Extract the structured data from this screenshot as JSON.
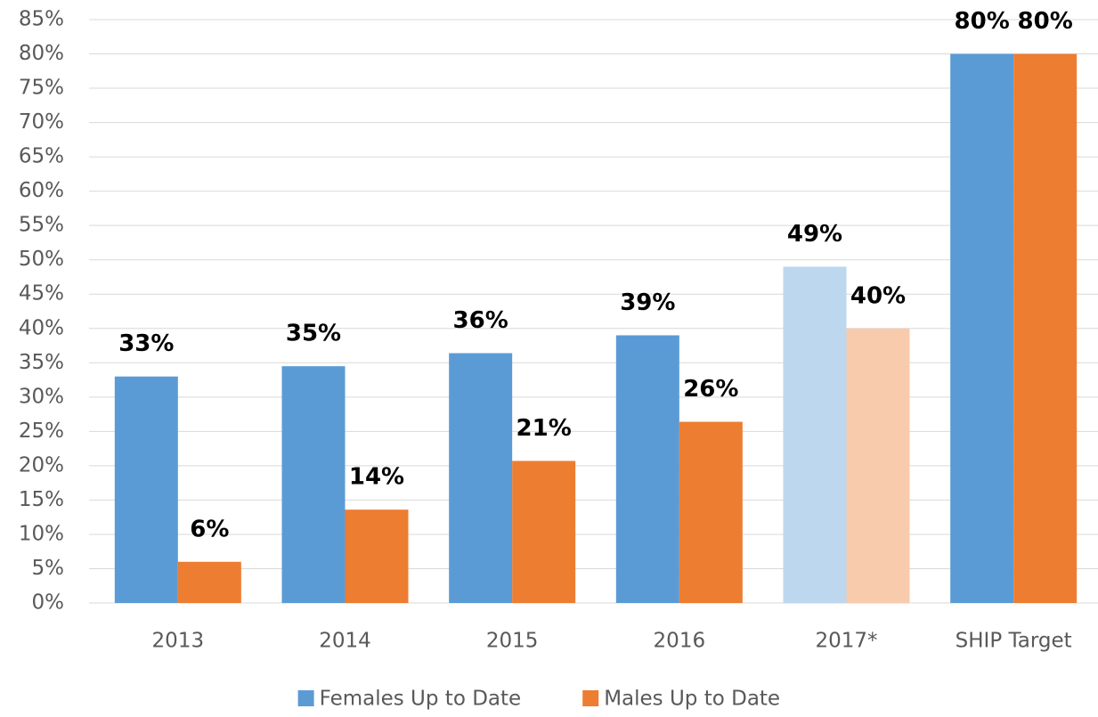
{
  "chart_data": {
    "type": "bar",
    "categories": [
      "2013",
      "2014",
      "2015",
      "2016",
      "2017*",
      "SHIP Target"
    ],
    "series": [
      {
        "name": "Females Up to Date",
        "color": "#5b9bd5",
        "colors": [
          "#5b9bd5",
          "#5b9bd5",
          "#5b9bd5",
          "#5b9bd5",
          "#bdd7ee",
          "#5b9bd5"
        ],
        "values": [
          33,
          34.5,
          36.4,
          39,
          49,
          80
        ],
        "value_labels": [
          "33%",
          "35%",
          "36%",
          "39%",
          "49%",
          "80%"
        ]
      },
      {
        "name": "Males Up to Date",
        "color": "#ed7d31",
        "colors": [
          "#ed7d31",
          "#ed7d31",
          "#ed7d31",
          "#ed7d31",
          "#f8cbad",
          "#ed7d31"
        ],
        "values": [
          6,
          13.6,
          20.7,
          26.4,
          40,
          80
        ],
        "value_labels": [
          "6%",
          "14%",
          "21%",
          "26%",
          "40%",
          "80%"
        ]
      }
    ],
    "ylim": [
      0,
      85
    ],
    "yticks": [
      {
        "value": 0,
        "label": "0%"
      },
      {
        "value": 5,
        "label": "5%"
      },
      {
        "value": 10,
        "label": "10%"
      },
      {
        "value": 15,
        "label": "15%"
      },
      {
        "value": 20,
        "label": "20%"
      },
      {
        "value": 25,
        "label": "25%"
      },
      {
        "value": 30,
        "label": "30%"
      },
      {
        "value": 35,
        "label": "35%"
      },
      {
        "value": 40,
        "label": "40%"
      },
      {
        "value": 45,
        "label": "45%"
      },
      {
        "value": 50,
        "label": "50%"
      },
      {
        "value": 55,
        "label": "55%"
      },
      {
        "value": 60,
        "label": "60%"
      },
      {
        "value": 65,
        "label": "65%"
      },
      {
        "value": 70,
        "label": "70%"
      },
      {
        "value": 75,
        "label": "75%"
      },
      {
        "value": 80,
        "label": "80%"
      },
      {
        "value": 85,
        "label": "85%"
      }
    ],
    "grid": true,
    "legend": "bottom"
  }
}
